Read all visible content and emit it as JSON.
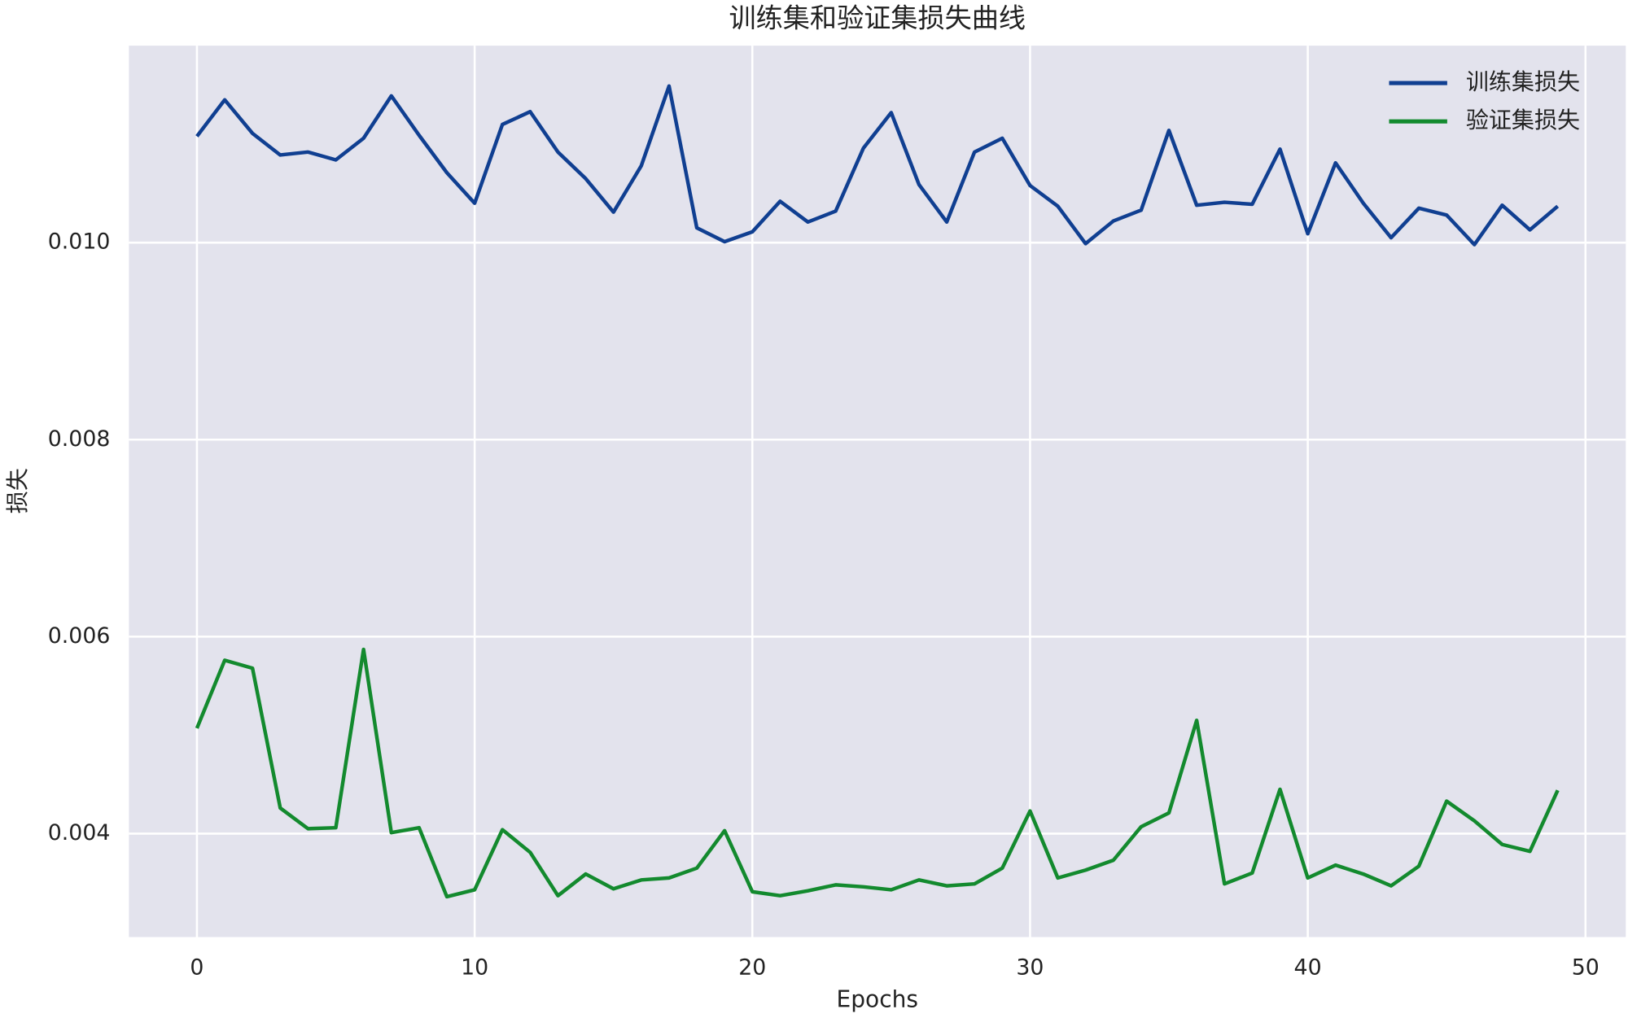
{
  "chart_data": {
    "type": "line",
    "title": "训练集和验证集损失曲线",
    "xlabel": "Epochs",
    "ylabel": "损失",
    "x": [
      0,
      1,
      2,
      3,
      4,
      5,
      6,
      7,
      8,
      9,
      10,
      11,
      12,
      13,
      14,
      15,
      16,
      17,
      18,
      19,
      20,
      21,
      22,
      23,
      24,
      25,
      26,
      27,
      28,
      29,
      30,
      31,
      32,
      33,
      34,
      35,
      36,
      37,
      38,
      39,
      40,
      41,
      42,
      43,
      44,
      45,
      46,
      47,
      48,
      49
    ],
    "series": [
      {
        "name": "训练集损失",
        "color": "#103f91",
        "values": [
          0.01108,
          0.01145,
          0.01111,
          0.01089,
          0.01092,
          0.01084,
          0.01106,
          0.01149,
          0.01109,
          0.01071,
          0.0104,
          0.0112,
          0.01133,
          0.01092,
          0.01065,
          0.01031,
          0.01078,
          0.01159,
          0.01015,
          0.01001,
          0.01011,
          0.01042,
          0.01021,
          0.01032,
          0.01096,
          0.01132,
          0.01059,
          0.01021,
          0.01092,
          0.01106,
          0.01058,
          0.01037,
          0.00999,
          0.01022,
          0.01033,
          0.01114,
          0.01038,
          0.01041,
          0.01039,
          0.01095,
          0.01009,
          0.01081,
          0.0104,
          0.01005,
          0.01035,
          0.01028,
          0.00998,
          0.01038,
          0.01013,
          0.01037
        ]
      },
      {
        "name": "验证集损失",
        "color": "#138a2e",
        "values": [
          0.00507,
          0.00576,
          0.00568,
          0.00426,
          0.00405,
          0.00406,
          0.00587,
          0.00401,
          0.00406,
          0.00336,
          0.00343,
          0.00404,
          0.00381,
          0.00337,
          0.00359,
          0.00344,
          0.00353,
          0.00355,
          0.00365,
          0.00403,
          0.00341,
          0.00337,
          0.00342,
          0.00348,
          0.00346,
          0.00343,
          0.00353,
          0.00347,
          0.00349,
          0.00365,
          0.00423,
          0.00355,
          0.00363,
          0.00373,
          0.00407,
          0.00421,
          0.00515,
          0.00349,
          0.0036,
          0.00445,
          0.00355,
          0.00368,
          0.00359,
          0.00347,
          0.00367,
          0.00433,
          0.00413,
          0.00389,
          0.00382,
          0.00444
        ]
      }
    ],
    "xlim": [
      -2.45,
      51.45
    ],
    "xticks": [
      0,
      10,
      20,
      30,
      40,
      50
    ],
    "ylim": [
      0.00295,
      0.012
    ],
    "yticks": [
      {
        "value": 0.004,
        "label": "0.004"
      },
      {
        "value": 0.006,
        "label": "0.006"
      },
      {
        "value": 0.008,
        "label": "0.008"
      },
      {
        "value": 0.01,
        "label": "0.010"
      }
    ],
    "grid": true,
    "legend": "upper right"
  }
}
